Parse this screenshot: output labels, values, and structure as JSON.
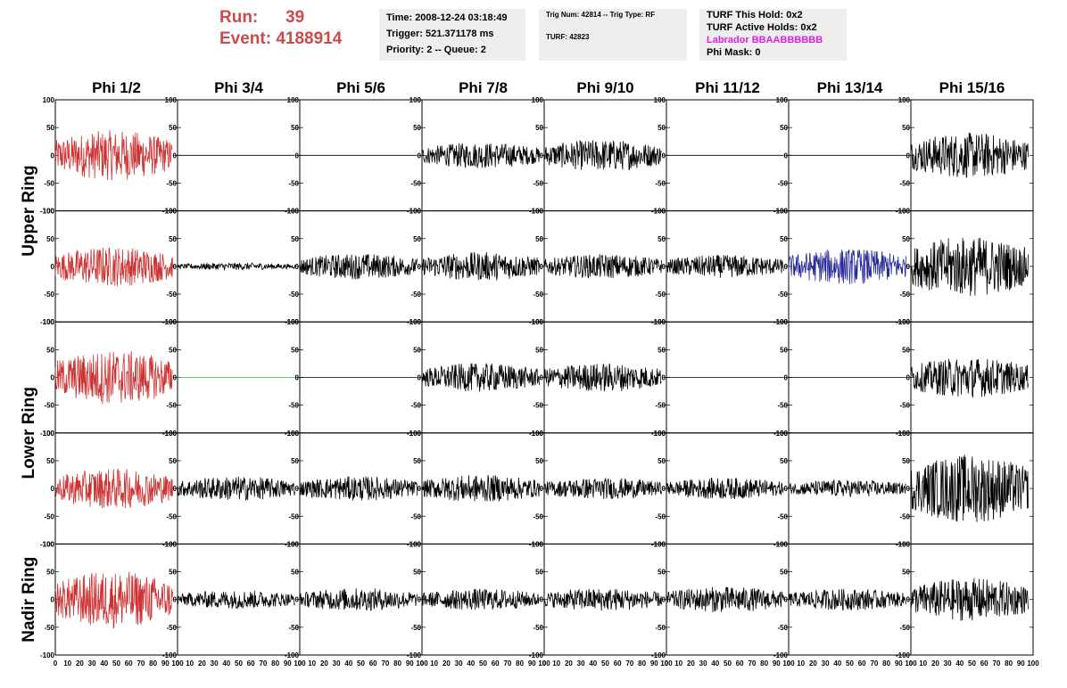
{
  "header": {
    "run_label": "Run:",
    "run_value": "39",
    "event_label": "Event:",
    "event_value": "4188914",
    "time": "Time: 2008-12-24 03:18:49",
    "trigger": "Trigger: 521.371178 ms",
    "priority": "Priority: 2 -- Queue: 2",
    "trig_num": "Trig Num: 42814 -- Trig Type: RF",
    "turf": "TURF: 42823",
    "turf_this_hold": "TURF This Hold: 0x2",
    "turf_active_holds": "TURF Active Holds: 0x2",
    "labrador": "Labrador BBAABBBBBB",
    "phi_mask": "Phi Mask: 0"
  },
  "colors": {
    "red": "#cc3333",
    "blue": "#2a2a9a",
    "green": "#44aa44",
    "black": "#000000",
    "labrador": "#e020e0",
    "run_text": "#cc4a4a"
  },
  "chart_data": {
    "type": "line",
    "columns": [
      "Phi 1/2",
      "Phi 3/4",
      "Phi 5/6",
      "Phi 7/8",
      "Phi 9/10",
      "Phi 11/12",
      "Phi 13/14",
      "Phi 15/16"
    ],
    "ring_labels": [
      "Upper Ring",
      "Lower Ring",
      "Nadir Ring"
    ],
    "xlim": [
      0,
      100
    ],
    "ylim": [
      -100,
      100
    ],
    "y_ticks": [
      "100",
      "50",
      "0",
      "-50",
      "-100"
    ],
    "x_ticks": [
      "0",
      "10",
      "20",
      "30",
      "40",
      "50",
      "60",
      "70",
      "80",
      "90",
      "100"
    ],
    "description": "Waveform grid: 5 rows x 8 columns, each panel x 0..~97, y -100..100",
    "panels": [
      [
        {
          "amp": 35,
          "color": "red"
        },
        {
          "amp": 0,
          "color": "black"
        },
        {
          "amp": 0,
          "color": "black"
        },
        {
          "amp": 18,
          "color": "black"
        },
        {
          "amp": 22,
          "color": "black"
        },
        {
          "amp": 0,
          "color": "black"
        },
        {
          "amp": 0,
          "color": "black"
        },
        {
          "amp": 32,
          "color": "black"
        }
      ],
      [
        {
          "amp": 28,
          "color": "red"
        },
        {
          "amp": 5,
          "color": "black"
        },
        {
          "amp": 18,
          "color": "black"
        },
        {
          "amp": 20,
          "color": "black"
        },
        {
          "amp": 17,
          "color": "black"
        },
        {
          "amp": 16,
          "color": "black"
        },
        {
          "amp": 25,
          "color": "blue"
        },
        {
          "amp": 42,
          "color": "black"
        }
      ],
      [
        {
          "amp": 38,
          "color": "red"
        },
        {
          "amp": 0,
          "color": "green"
        },
        {
          "amp": 0,
          "color": "black"
        },
        {
          "amp": 20,
          "color": "black"
        },
        {
          "amp": 20,
          "color": "black"
        },
        {
          "amp": 0,
          "color": "black"
        },
        {
          "amp": 0,
          "color": "black"
        },
        {
          "amp": 28,
          "color": "black"
        }
      ],
      [
        {
          "amp": 28,
          "color": "red"
        },
        {
          "amp": 17,
          "color": "black"
        },
        {
          "amp": 17,
          "color": "black"
        },
        {
          "amp": 19,
          "color": "black"
        },
        {
          "amp": 15,
          "color": "black"
        },
        {
          "amp": 15,
          "color": "black"
        },
        {
          "amp": 12,
          "color": "black"
        },
        {
          "amp": 48,
          "color": "black"
        }
      ],
      [
        {
          "amp": 40,
          "color": "red"
        },
        {
          "amp": 13,
          "color": "black"
        },
        {
          "amp": 16,
          "color": "black"
        },
        {
          "amp": 15,
          "color": "black"
        },
        {
          "amp": 16,
          "color": "black"
        },
        {
          "amp": 18,
          "color": "black"
        },
        {
          "amp": 15,
          "color": "black"
        },
        {
          "amp": 30,
          "color": "black"
        }
      ]
    ]
  }
}
